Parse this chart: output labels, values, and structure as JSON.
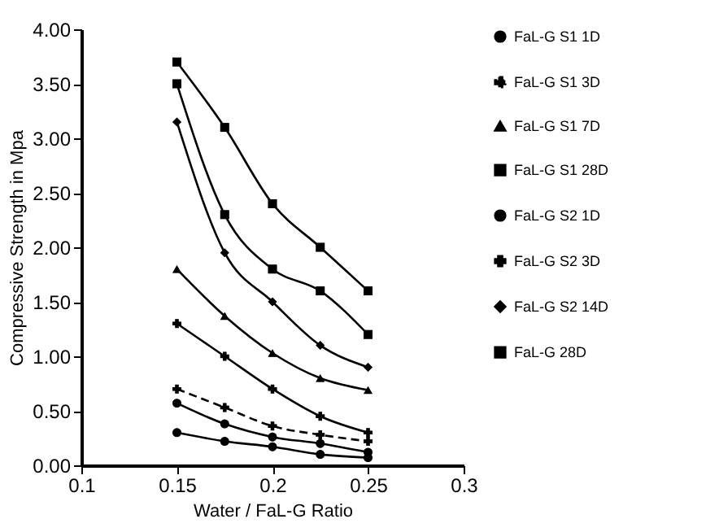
{
  "chart_data": {
    "type": "line",
    "xlabel": "Water / FaL-G Ratio",
    "ylabel": "Compressive Strength in Mpa",
    "x": [
      0.15,
      0.175,
      0.2,
      0.225,
      0.25
    ],
    "series": [
      {
        "name": "FaL-G S1 1D",
        "color": "#000000",
        "marker": "circle",
        "line_style": "solid",
        "values": [
          0.57,
          0.38,
          0.26,
          0.2,
          0.12
        ]
      },
      {
        "name": "FaL-G S1 3D",
        "color": "#000000",
        "marker": "cross",
        "line_style": "dashed",
        "values": [
          0.7,
          0.53,
          0.36,
          0.28,
          0.22
        ]
      },
      {
        "name": "FaL-G S1 7D",
        "color": "#000000",
        "marker": "triangle",
        "line_style": "solid",
        "values": [
          1.8,
          1.37,
          1.03,
          0.8,
          0.69
        ]
      },
      {
        "name": "FaL-G S1 28D",
        "color": "#000000",
        "marker": "square",
        "line_style": "solid",
        "values": [
          3.7,
          3.1,
          2.4,
          2.0,
          1.6
        ]
      },
      {
        "name": "FaL-G S2 1D",
        "color": "#000000",
        "marker": "circle",
        "line_style": "solid",
        "values": [
          0.3,
          0.22,
          0.17,
          0.1,
          0.07
        ]
      },
      {
        "name": "FaL-G S2 3D",
        "color": "#000000",
        "marker": "cross",
        "line_style": "solid",
        "values": [
          1.3,
          1.0,
          0.7,
          0.45,
          0.3
        ]
      },
      {
        "name": "FaL-G S2 14D",
        "color": "#000000",
        "marker": "diamond",
        "line_style": "solid",
        "values": [
          3.15,
          1.95,
          1.5,
          1.1,
          0.9
        ]
      },
      {
        "name": "FaL-G 28D",
        "color": "#000000",
        "marker": "square",
        "line_style": "solid",
        "values": [
          3.5,
          2.3,
          1.8,
          1.6,
          1.2
        ]
      }
    ],
    "xlim": [
      0.1,
      0.3
    ],
    "xticks": [
      0.1,
      0.15,
      0.2,
      0.25,
      0.3
    ],
    "ylim": [
      0,
      4
    ],
    "yticks": [
      {
        "value": 0,
        "label": "0.00"
      },
      {
        "value": 0.5,
        "label": "0.50"
      },
      {
        "value": 1,
        "label": "1.00"
      },
      {
        "value": 1.5,
        "label": "1.50"
      },
      {
        "value": 2,
        "label": "2.00"
      },
      {
        "value": 2.5,
        "label": "2.50"
      },
      {
        "value": 3,
        "label": "3.00"
      },
      {
        "value": 3.5,
        "label": "3.50"
      },
      {
        "value": 4,
        "label": "4.00"
      }
    ],
    "grid": false,
    "legend": "right"
  }
}
